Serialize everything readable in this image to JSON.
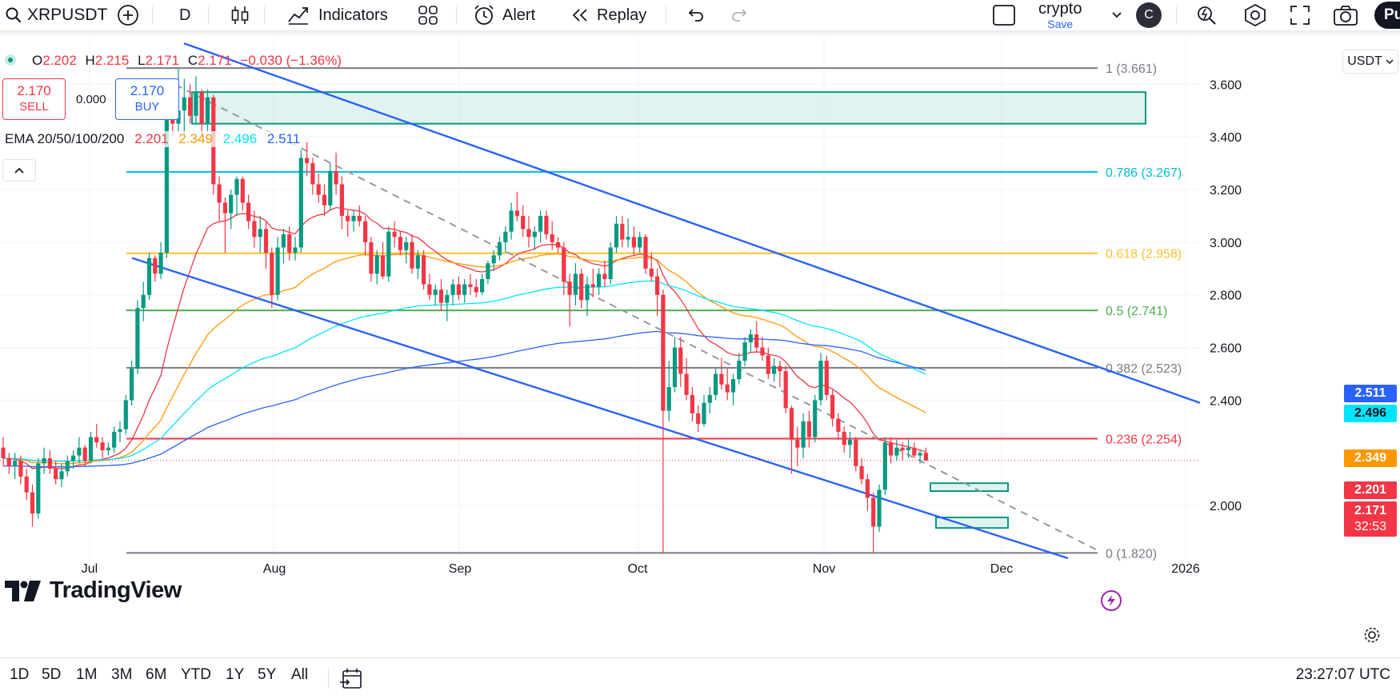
{
  "toolbar": {
    "symbol": "XRPUSDT",
    "interval": "D",
    "indicators_label": "Indicators",
    "alert_label": "Alert",
    "replay_label": "Replay",
    "layout_name": "crypto",
    "layout_save": "Save",
    "avatar_letter": "C",
    "publish_partial": "Pu"
  },
  "legend": {
    "open_prefix": "O",
    "open": "2.202",
    "high_prefix": "H",
    "high": "2.215",
    "low_prefix": "L",
    "low": "2.171",
    "close_prefix": "C",
    "close": "2.171",
    "change": "−0.030 (−1.36%)",
    "sell_price": "2.170",
    "sell_label": "SELL",
    "spread": "0.000",
    "buy_price": "2.170",
    "buy_label": "BUY",
    "ema_title": "EMA 20/50/100/200",
    "ema20": "2.201",
    "ema50": "2.349",
    "ema100": "2.496",
    "ema200": "2.511"
  },
  "price_scale": {
    "currency": "USDT",
    "ticks": [
      "3.600",
      "3.400",
      "3.200",
      "3.000",
      "2.800",
      "2.600",
      "2.400",
      "2.000"
    ],
    "tags": {
      "ema200": "2.511",
      "ema100": "2.496",
      "ema50": "2.349",
      "ema20": "2.201",
      "last": "2.171",
      "countdown": "32:53"
    }
  },
  "time_scale": {
    "labels": [
      "Jul",
      "Aug",
      "Sep",
      "Oct",
      "Nov",
      "Dec",
      "2026"
    ]
  },
  "bottom": {
    "ranges": [
      "1D",
      "5D",
      "1M",
      "3M",
      "6M",
      "YTD",
      "1Y",
      "5Y",
      "All"
    ],
    "clock": "23:27:07 UTC"
  },
  "branding": {
    "logo_text": "TradingView"
  },
  "colors": {
    "up": "#089981",
    "down": "#f23645",
    "ema20": "#f23645",
    "ema50": "#ff9800",
    "ema100": "#00e5ff",
    "ema200": "#2962ff",
    "channel": "#2962ff",
    "fib_1": "#787b86",
    "fib_786": "#00bcd4",
    "fib_618": "#fbc02d",
    "fib_5": "#4caf50",
    "fib_382": "#787b86",
    "fib_236": "#f23645",
    "fib_0": "#787b86",
    "zone_fill": "rgba(8,153,129,0.12)",
    "zone_stroke": "#089981"
  },
  "chart_data": {
    "type": "candlestick",
    "title": "XRPUSDT",
    "interval": "1D",
    "x": [
      "2025-06-17",
      "2025-06-18",
      "2025-06-19",
      "2025-06-20",
      "2025-06-21",
      "2025-06-22",
      "2025-06-23",
      "2025-06-24",
      "2025-06-25",
      "2025-06-26",
      "2025-06-27",
      "2025-06-28",
      "2025-06-29",
      "2025-06-30",
      "2025-07-01",
      "2025-07-02",
      "2025-07-03",
      "2025-07-04",
      "2025-07-05",
      "2025-07-06",
      "2025-07-07",
      "2025-07-08",
      "2025-07-09",
      "2025-07-10",
      "2025-07-11",
      "2025-07-12",
      "2025-07-13",
      "2025-07-14",
      "2025-07-15",
      "2025-07-16",
      "2025-07-17",
      "2025-07-18",
      "2025-07-19",
      "2025-07-20",
      "2025-07-21",
      "2025-07-22",
      "2025-07-23",
      "2025-07-24",
      "2025-07-25",
      "2025-07-26",
      "2025-07-27",
      "2025-07-28",
      "2025-07-29",
      "2025-07-30",
      "2025-07-31",
      "2025-08-01",
      "2025-08-02",
      "2025-08-03",
      "2025-08-04",
      "2025-08-05",
      "2025-08-06",
      "2025-08-07",
      "2025-08-08",
      "2025-08-09",
      "2025-08-10",
      "2025-08-11",
      "2025-08-12",
      "2025-08-13",
      "2025-08-14",
      "2025-08-15",
      "2025-08-16",
      "2025-08-17",
      "2025-08-18",
      "2025-08-19",
      "2025-08-20",
      "2025-08-21",
      "2025-08-22",
      "2025-08-23",
      "2025-08-24",
      "2025-08-25",
      "2025-08-26",
      "2025-08-27",
      "2025-08-28",
      "2025-08-29",
      "2025-08-30",
      "2025-08-31",
      "2025-09-01",
      "2025-09-02",
      "2025-09-03",
      "2025-09-04",
      "2025-09-05",
      "2025-09-06",
      "2025-09-07",
      "2025-09-08",
      "2025-09-09",
      "2025-09-10",
      "2025-09-11",
      "2025-09-12",
      "2025-09-13",
      "2025-09-14",
      "2025-09-15",
      "2025-09-16",
      "2025-09-17",
      "2025-09-18",
      "2025-09-19",
      "2025-09-20",
      "2025-09-21",
      "2025-09-22",
      "2025-09-23",
      "2025-09-24",
      "2025-09-25",
      "2025-09-26",
      "2025-09-27",
      "2025-09-28",
      "2025-09-29",
      "2025-09-30",
      "2025-10-01",
      "2025-10-02",
      "2025-10-03",
      "2025-10-04",
      "2025-10-05",
      "2025-10-06",
      "2025-10-07",
      "2025-10-08",
      "2025-10-09",
      "2025-10-10",
      "2025-10-11",
      "2025-10-12",
      "2025-10-13",
      "2025-10-14",
      "2025-10-15",
      "2025-10-16",
      "2025-10-17",
      "2025-10-18",
      "2025-10-19",
      "2025-10-20",
      "2025-10-21",
      "2025-10-22",
      "2025-10-23",
      "2025-10-24",
      "2025-10-25",
      "2025-10-26",
      "2025-10-27",
      "2025-10-28",
      "2025-10-29",
      "2025-10-30",
      "2025-10-31",
      "2025-11-01",
      "2025-11-02",
      "2025-11-03",
      "2025-11-04",
      "2025-11-05",
      "2025-11-06",
      "2025-11-07",
      "2025-11-08",
      "2025-11-09",
      "2025-11-10",
      "2025-11-11",
      "2025-11-12",
      "2025-11-13",
      "2025-11-14",
      "2025-11-15",
      "2025-11-16",
      "2025-11-17",
      "2025-11-18",
      "2025-11-19",
      "2025-11-20",
      "2025-11-21",
      "2025-11-22",
      "2025-11-23",
      "2025-11-24",
      "2025-11-25",
      "2025-11-26",
      "2025-11-27",
      "2025-11-28"
    ],
    "ohlc": [
      [
        2.22,
        2.26,
        2.15,
        2.18
      ],
      [
        2.18,
        2.2,
        2.12,
        2.15
      ],
      [
        2.15,
        2.2,
        2.1,
        2.17
      ],
      [
        2.17,
        2.19,
        2.08,
        2.11
      ],
      [
        2.11,
        2.14,
        2.02,
        2.05
      ],
      [
        2.05,
        2.08,
        1.92,
        1.97
      ],
      [
        1.97,
        2.18,
        1.95,
        2.16
      ],
      [
        2.16,
        2.22,
        2.12,
        2.18
      ],
      [
        2.18,
        2.21,
        2.12,
        2.14
      ],
      [
        2.14,
        2.17,
        2.08,
        2.1
      ],
      [
        2.1,
        2.16,
        2.07,
        2.13
      ],
      [
        2.13,
        2.19,
        2.11,
        2.17
      ],
      [
        2.17,
        2.21,
        2.14,
        2.19
      ],
      [
        2.19,
        2.26,
        2.16,
        2.22
      ],
      [
        2.22,
        2.23,
        2.15,
        2.17
      ],
      [
        2.17,
        2.28,
        2.16,
        2.26
      ],
      [
        2.26,
        2.31,
        2.22,
        2.24
      ],
      [
        2.24,
        2.26,
        2.18,
        2.21
      ],
      [
        2.21,
        2.24,
        2.19,
        2.22
      ],
      [
        2.22,
        2.3,
        2.2,
        2.28
      ],
      [
        2.28,
        2.32,
        2.24,
        2.29
      ],
      [
        2.29,
        2.42,
        2.27,
        2.4
      ],
      [
        2.4,
        2.55,
        2.38,
        2.52
      ],
      [
        2.52,
        2.78,
        2.5,
        2.75
      ],
      [
        2.75,
        2.85,
        2.7,
        2.8
      ],
      [
        2.8,
        2.96,
        2.78,
        2.94
      ],
      [
        2.94,
        2.95,
        2.85,
        2.88
      ],
      [
        2.88,
        3.0,
        2.86,
        2.96
      ],
      [
        2.96,
        3.55,
        2.94,
        3.52
      ],
      [
        3.52,
        3.6,
        3.4,
        3.45
      ],
      [
        3.45,
        3.66,
        3.42,
        3.5
      ],
      [
        3.5,
        3.62,
        3.4,
        3.55
      ],
      [
        3.55,
        3.6,
        3.45,
        3.48
      ],
      [
        3.48,
        3.63,
        3.45,
        3.57
      ],
      [
        3.57,
        3.58,
        3.4,
        3.45
      ],
      [
        3.45,
        3.58,
        3.42,
        3.55
      ],
      [
        3.55,
        3.56,
        3.18,
        3.22
      ],
      [
        3.22,
        3.25,
        3.08,
        3.15
      ],
      [
        3.15,
        3.17,
        2.96,
        3.11
      ],
      [
        3.11,
        3.2,
        3.05,
        3.18
      ],
      [
        3.18,
        3.25,
        3.1,
        3.24
      ],
      [
        3.24,
        3.25,
        3.12,
        3.15
      ],
      [
        3.15,
        3.18,
        3.05,
        3.08
      ],
      [
        3.08,
        3.12,
        2.98,
        3.02
      ],
      [
        3.02,
        3.1,
        2.96,
        3.05
      ],
      [
        3.05,
        3.08,
        2.9,
        2.96
      ],
      [
        2.96,
        2.98,
        2.75,
        2.8
      ],
      [
        2.8,
        3.02,
        2.78,
        2.98
      ],
      [
        2.98,
        3.05,
        2.92,
        3.03
      ],
      [
        3.03,
        3.06,
        2.93,
        2.96
      ],
      [
        2.96,
        3.02,
        2.93,
        2.98
      ],
      [
        2.98,
        3.35,
        2.96,
        3.32
      ],
      [
        3.32,
        3.38,
        3.25,
        3.3
      ],
      [
        3.3,
        3.32,
        3.18,
        3.22
      ],
      [
        3.22,
        3.26,
        3.15,
        3.18
      ],
      [
        3.18,
        3.22,
        3.1,
        3.14
      ],
      [
        3.14,
        3.3,
        3.12,
        3.27
      ],
      [
        3.27,
        3.34,
        3.18,
        3.22
      ],
      [
        3.22,
        3.25,
        3.05,
        3.1
      ],
      [
        3.1,
        3.12,
        3.02,
        3.08
      ],
      [
        3.08,
        3.12,
        3.04,
        3.1
      ],
      [
        3.1,
        3.14,
        3.06,
        3.08
      ],
      [
        3.08,
        3.1,
        2.95,
        3.0
      ],
      [
        3.0,
        3.02,
        2.85,
        2.88
      ],
      [
        2.88,
        2.97,
        2.84,
        2.95
      ],
      [
        2.95,
        3.0,
        2.86,
        2.87
      ],
      [
        2.87,
        3.06,
        2.85,
        3.04
      ],
      [
        3.04,
        3.08,
        2.98,
        3.02
      ],
      [
        3.02,
        3.04,
        2.95,
        2.97
      ],
      [
        2.97,
        3.02,
        2.92,
        3.0
      ],
      [
        3.0,
        3.03,
        2.88,
        2.9
      ],
      [
        2.9,
        2.97,
        2.86,
        2.95
      ],
      [
        2.95,
        2.97,
        2.82,
        2.84
      ],
      [
        2.84,
        2.88,
        2.78,
        2.8
      ],
      [
        2.8,
        2.84,
        2.76,
        2.82
      ],
      [
        2.82,
        2.86,
        2.74,
        2.77
      ],
      [
        2.77,
        2.82,
        2.7,
        2.8
      ],
      [
        2.8,
        2.86,
        2.76,
        2.84
      ],
      [
        2.84,
        2.87,
        2.78,
        2.8
      ],
      [
        2.8,
        2.86,
        2.77,
        2.84
      ],
      [
        2.84,
        2.88,
        2.8,
        2.83
      ],
      [
        2.83,
        2.86,
        2.79,
        2.81
      ],
      [
        2.81,
        2.88,
        2.8,
        2.86
      ],
      [
        2.86,
        2.93,
        2.84,
        2.92
      ],
      [
        2.92,
        2.97,
        2.89,
        2.95
      ],
      [
        2.95,
        3.02,
        2.93,
        3.0
      ],
      [
        3.0,
        3.06,
        2.96,
        3.04
      ],
      [
        3.04,
        3.15,
        3.01,
        3.12
      ],
      [
        3.12,
        3.19,
        3.08,
        3.1
      ],
      [
        3.1,
        3.14,
        3.02,
        3.05
      ],
      [
        3.05,
        3.1,
        2.98,
        3.02
      ],
      [
        3.02,
        3.06,
        2.97,
        3.04
      ],
      [
        3.04,
        3.12,
        3.0,
        3.1
      ],
      [
        3.1,
        3.12,
        3.01,
        3.03
      ],
      [
        3.03,
        3.08,
        2.97,
        3.0
      ],
      [
        3.0,
        3.02,
        2.96,
        2.98
      ],
      [
        2.98,
        3.0,
        2.8,
        2.85
      ],
      [
        2.85,
        2.88,
        2.68,
        2.8
      ],
      [
        2.8,
        2.92,
        2.76,
        2.88
      ],
      [
        2.88,
        2.9,
        2.75,
        2.78
      ],
      [
        2.78,
        2.87,
        2.72,
        2.84
      ],
      [
        2.84,
        2.9,
        2.79,
        2.83
      ],
      [
        2.83,
        2.9,
        2.8,
        2.88
      ],
      [
        2.88,
        2.93,
        2.83,
        2.86
      ],
      [
        2.86,
        3.0,
        2.84,
        2.98
      ],
      [
        2.98,
        3.1,
        2.96,
        3.07
      ],
      [
        3.07,
        3.1,
        2.98,
        3.01
      ],
      [
        3.01,
        3.09,
        2.98,
        3.02
      ],
      [
        3.02,
        3.06,
        2.95,
        2.98
      ],
      [
        2.98,
        3.04,
        2.96,
        3.02
      ],
      [
        3.02,
        3.03,
        2.88,
        2.9
      ],
      [
        2.9,
        2.96,
        2.85,
        2.87
      ],
      [
        2.87,
        2.9,
        2.72,
        2.8
      ],
      [
        2.8,
        2.82,
        1.82,
        2.36
      ],
      [
        2.36,
        2.55,
        2.32,
        2.45
      ],
      [
        2.45,
        2.64,
        2.43,
        2.6
      ],
      [
        2.6,
        2.64,
        2.45,
        2.5
      ],
      [
        2.5,
        2.56,
        2.4,
        2.42
      ],
      [
        2.42,
        2.45,
        2.32,
        2.35
      ],
      [
        2.35,
        2.38,
        2.28,
        2.31
      ],
      [
        2.31,
        2.42,
        2.3,
        2.39
      ],
      [
        2.39,
        2.45,
        2.35,
        2.42
      ],
      [
        2.42,
        2.52,
        2.4,
        2.5
      ],
      [
        2.5,
        2.56,
        2.44,
        2.46
      ],
      [
        2.46,
        2.52,
        2.4,
        2.43
      ],
      [
        2.43,
        2.5,
        2.38,
        2.48
      ],
      [
        2.48,
        2.58,
        2.46,
        2.55
      ],
      [
        2.55,
        2.64,
        2.53,
        2.62
      ],
      [
        2.62,
        2.67,
        2.58,
        2.65
      ],
      [
        2.65,
        2.7,
        2.58,
        2.6
      ],
      [
        2.6,
        2.64,
        2.55,
        2.57
      ],
      [
        2.57,
        2.6,
        2.48,
        2.5
      ],
      [
        2.5,
        2.56,
        2.47,
        2.53
      ],
      [
        2.53,
        2.55,
        2.45,
        2.51
      ],
      [
        2.51,
        2.53,
        2.35,
        2.37
      ],
      [
        2.37,
        2.38,
        2.12,
        2.25
      ],
      [
        2.25,
        2.3,
        2.15,
        2.22
      ],
      [
        2.22,
        2.35,
        2.18,
        2.32
      ],
      [
        2.32,
        2.36,
        2.22,
        2.26
      ],
      [
        2.26,
        2.42,
        2.24,
        2.4
      ],
      [
        2.4,
        2.58,
        2.38,
        2.55
      ],
      [
        2.55,
        2.57,
        2.4,
        2.42
      ],
      [
        2.42,
        2.44,
        2.3,
        2.33
      ],
      [
        2.33,
        2.35,
        2.25,
        2.28
      ],
      [
        2.28,
        2.3,
        2.2,
        2.23
      ],
      [
        2.23,
        2.28,
        2.18,
        2.25
      ],
      [
        2.25,
        2.26,
        2.13,
        2.15
      ],
      [
        2.15,
        2.18,
        2.08,
        2.1
      ],
      [
        2.1,
        2.12,
        1.98,
        2.03
      ],
      [
        2.03,
        2.05,
        1.82,
        1.92
      ],
      [
        1.92,
        2.08,
        1.9,
        2.06
      ],
      [
        2.06,
        2.26,
        2.04,
        2.24
      ],
      [
        2.24,
        2.26,
        2.16,
        2.19
      ],
      [
        2.19,
        2.25,
        2.17,
        2.22
      ],
      [
        2.22,
        2.24,
        2.17,
        2.21
      ],
      [
        2.21,
        2.25,
        2.18,
        2.22
      ],
      [
        2.22,
        2.24,
        2.18,
        2.19
      ],
      [
        2.19,
        2.21,
        2.16,
        2.2
      ],
      [
        2.2,
        2.22,
        2.17,
        2.171
      ]
    ],
    "ema": [
      {
        "name": "EMA 20",
        "period": 20
      },
      {
        "name": "EMA 50",
        "period": 50
      },
      {
        "name": "EMA 100",
        "period": 100
      },
      {
        "name": "EMA 200",
        "period": 200
      }
    ],
    "fib_levels": [
      {
        "label": "1 (3.661)",
        "level": 3.661,
        "color": "#787b86"
      },
      {
        "label": "0.786 (3.267)",
        "level": 3.267,
        "color": "#00bcd4"
      },
      {
        "label": "0.618 (2.958)",
        "level": 2.958,
        "color": "#fbc02d"
      },
      {
        "label": "0.5 (2.741)",
        "level": 2.741,
        "color": "#4caf50"
      },
      {
        "label": "0.382 (2.523)",
        "level": 2.523,
        "color": "#787b86"
      },
      {
        "label": "0.236 (2.254)",
        "level": 2.254,
        "color": "#f23645"
      },
      {
        "label": "0 (1.820)",
        "level": 1.82,
        "color": "#787b86"
      }
    ],
    "ylim": [
      1.8,
      3.78
    ],
    "ticks": [
      2.0,
      2.4,
      2.6,
      2.8,
      3.0,
      3.2,
      3.4,
      3.6
    ],
    "last_price": 2.171
  }
}
